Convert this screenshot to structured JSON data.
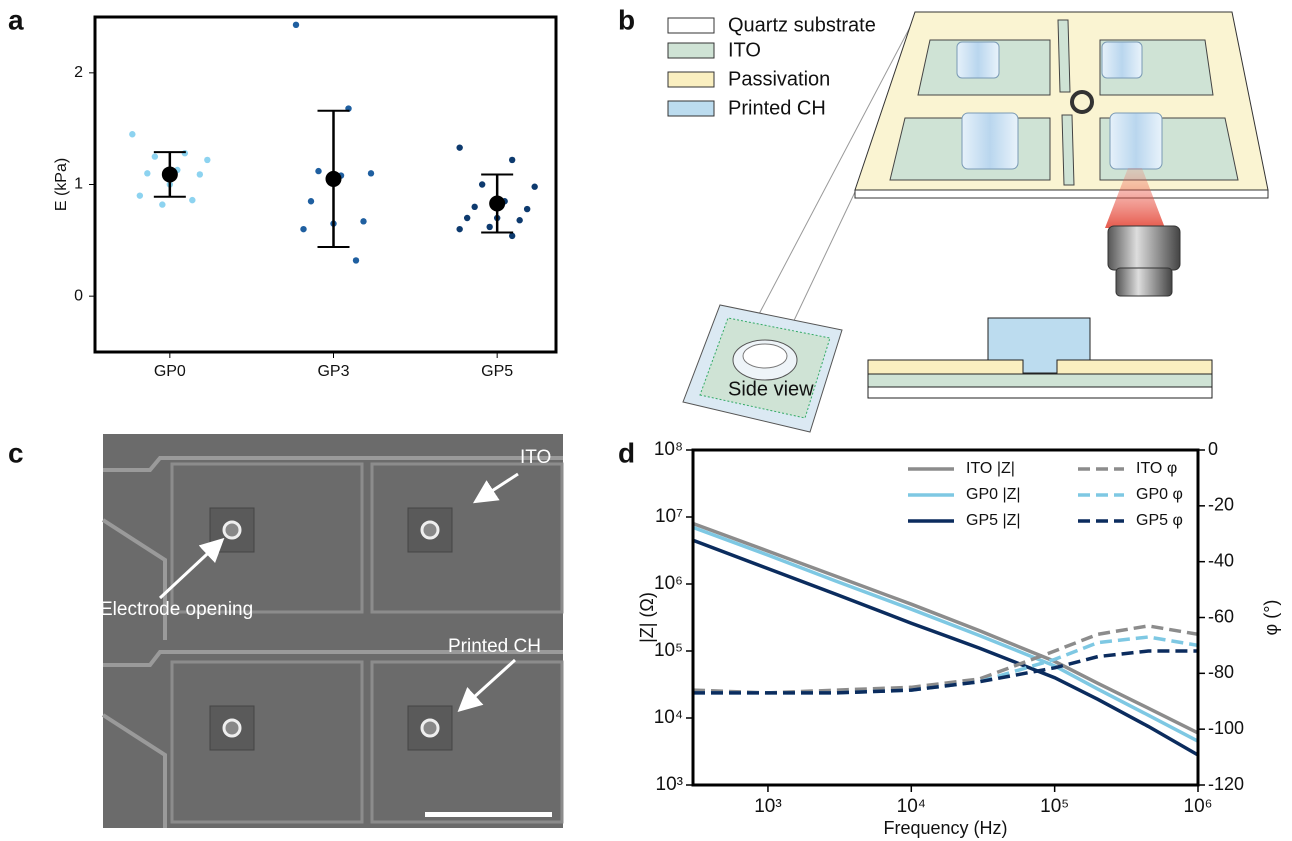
{
  "panel_labels": [
    "a",
    "b",
    "c",
    "d"
  ],
  "chart_data": [
    {
      "type": "strip",
      "ylabel": "E (kPa)",
      "categories": [
        "GP0",
        "GP3",
        "GP5"
      ],
      "ylim": [
        -0.5,
        2.5
      ],
      "yticks": [
        0,
        1,
        2
      ],
      "series": [
        {
          "color": "#8dd3f0",
          "values": [
            1.45,
            1.28,
            1.25,
            1.22,
            1.13,
            1.1,
            1.09,
            1.0,
            0.9,
            0.86,
            0.82
          ],
          "mean": 1.09,
          "error": 0.2
        },
        {
          "color": "#1f5fa0",
          "values": [
            2.43,
            1.68,
            1.12,
            1.1,
            1.08,
            0.85,
            0.67,
            0.65,
            0.6,
            0.32
          ],
          "mean": 1.05,
          "error": 0.61
        },
        {
          "color": "#0d3a6e",
          "values": [
            1.33,
            1.22,
            1.0,
            0.98,
            0.85,
            0.8,
            0.78,
            0.7,
            0.7,
            0.68,
            0.62,
            0.6,
            0.54
          ],
          "mean": 0.83,
          "error": 0.26
        }
      ]
    },
    {
      "type": "line",
      "xlabel": "Frequency (Hz)",
      "ylabel": "|Z| (Ω)",
      "y2label": "φ (°)",
      "xscale": "log",
      "yscale": "log",
      "x": [
        300,
        1000,
        3000,
        10000,
        30000,
        100000,
        200000,
        450000,
        1000000
      ],
      "xlim": [
        300,
        1000000
      ],
      "xticks": [
        {
          "value": 1000,
          "label": "10³"
        },
        {
          "value": 10000,
          "label": "10⁴"
        },
        {
          "value": 100000,
          "label": "10⁵"
        },
        {
          "value": 1000000,
          "label": "10⁶"
        }
      ],
      "ylim": [
        1000,
        100000000
      ],
      "yticks": [
        {
          "value": 1000,
          "label": "10³"
        },
        {
          "value": 10000,
          "label": "10⁴"
        },
        {
          "value": 100000,
          "label": "10⁵"
        },
        {
          "value": 1000000,
          "label": "10⁶"
        },
        {
          "value": 10000000,
          "label": "10⁷"
        },
        {
          "value": 100000000,
          "label": "10⁸"
        }
      ],
      "y2lim": [
        -120,
        0
      ],
      "y2ticks": [
        -120,
        -100,
        -80,
        -60,
        -40,
        -20,
        0
      ],
      "legend": "upper right",
      "legend_columns": 2,
      "series": [
        {
          "name": "ITO |Z|",
          "color": "#8c8c8c",
          "linestyle": "solid",
          "values": [
            8000000,
            3100000,
            1300000,
            500000,
            200000,
            70000,
            33000,
            14000,
            6000
          ]
        },
        {
          "name": "GP0 |Z|",
          "color": "#7ec8e3",
          "linestyle": "solid",
          "values": [
            7000000,
            2700000,
            1100000,
            420000,
            170000,
            60000,
            27000,
            11000,
            4500
          ]
        },
        {
          "name": "GP5 |Z|",
          "color": "#0b2c5e",
          "linestyle": "solid",
          "values": [
            4500000,
            1700000,
            700000,
            260000,
            110000,
            40000,
            19000,
            7500,
            2800
          ]
        },
        {
          "name": "ITO φ",
          "color": "#8c8c8c",
          "linestyle": "dashed",
          "axis": "y2",
          "values": [
            -86,
            -87,
            -86,
            -85,
            -82,
            -72,
            -66,
            -63,
            -66
          ]
        },
        {
          "name": "GP0 φ",
          "color": "#7ec8e3",
          "linestyle": "dashed",
          "axis": "y2",
          "values": [
            -87,
            -87,
            -87,
            -86,
            -83,
            -75,
            -69,
            -67,
            -70
          ]
        },
        {
          "name": "GP5 φ",
          "color": "#0b2c5e",
          "linestyle": "dashed",
          "axis": "y2",
          "values": [
            -87,
            -87,
            -87,
            -86,
            -83,
            -78,
            -74,
            -72,
            -72
          ]
        }
      ]
    }
  ],
  "diagram": {
    "legend": [
      "Quartz substrate",
      "ITO",
      "Passivation",
      "Printed CH"
    ],
    "side_view": "Side view"
  },
  "image": {
    "labels": [
      "ITO",
      "Electrode opening",
      "Printed CH"
    ]
  }
}
